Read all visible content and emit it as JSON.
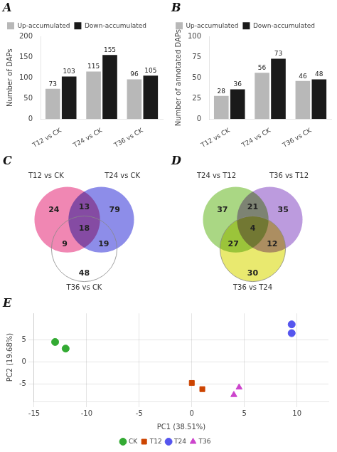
{
  "chart_data": [
    {
      "type": "bar",
      "title": "A",
      "categories": [
        "T12 vs CK",
        "T24 vs CK",
        "T36 vs CK"
      ],
      "series": [
        {
          "name": "Up-accumulated",
          "color": "#b8b8b8",
          "values": [
            73,
            115,
            96
          ]
        },
        {
          "name": "Down-accumulated",
          "color": "#1a1a1a",
          "values": [
            103,
            155,
            105
          ]
        }
      ],
      "ylabel": "Number of DAPs",
      "ylim": [
        0,
        200
      ],
      "yticks": [
        0,
        50,
        100,
        150,
        200
      ],
      "legend": "upper left",
      "data_labels": true,
      "grid": false
    },
    {
      "type": "bar",
      "title": "B",
      "categories": [
        "T12 vs CK",
        "T24 vs CK",
        "T36 vs CK"
      ],
      "series": [
        {
          "name": "Up-accumulated",
          "color": "#b8b8b8",
          "values": [
            28,
            56,
            46
          ]
        },
        {
          "name": "Down-accumulated",
          "color": "#1a1a1a",
          "values": [
            36,
            73,
            48
          ]
        }
      ],
      "ylabel": "Number of annotated DAPs",
      "ylim": [
        0,
        100
      ],
      "yticks": [
        0,
        25,
        50,
        75,
        100
      ],
      "legend": "upper left",
      "data_labels": true,
      "grid": false
    },
    {
      "type": "venn",
      "title": "C",
      "series": [
        {
          "name": "T12 vs CK",
          "color": "#e8468a"
        },
        {
          "name": "T24 vs CK",
          "color": "#5050dd"
        },
        {
          "name": "T36 vs CK",
          "color": "#ffffff"
        }
      ],
      "regions": [
        {
          "sets": [
            "T12 vs CK"
          ],
          "value": 24
        },
        {
          "sets": [
            "T24 vs CK"
          ],
          "value": 79
        },
        {
          "sets": [
            "T36 vs CK"
          ],
          "value": 48
        },
        {
          "sets": [
            "T12 vs CK",
            "T24 vs CK"
          ],
          "value": 13
        },
        {
          "sets": [
            "T12 vs CK",
            "T36 vs CK"
          ],
          "value": 9
        },
        {
          "sets": [
            "T24 vs CK",
            "T36 vs CK"
          ],
          "value": 19
        },
        {
          "sets": [
            "T12 vs CK",
            "T24 vs CK",
            "T36 vs CK"
          ],
          "value": 18
        }
      ],
      "data_labels": true
    },
    {
      "type": "venn",
      "title": "D",
      "series": [
        {
          "name": "T24 vs T12",
          "color": "#7dc242"
        },
        {
          "name": "T36 vs T12",
          "color": "#9966cc"
        },
        {
          "name": "T36 vs T24",
          "color": "#dddd22"
        }
      ],
      "regions": [
        {
          "sets": [
            "T24 vs T12"
          ],
          "value": 37
        },
        {
          "sets": [
            "T36 vs T12"
          ],
          "value": 35
        },
        {
          "sets": [
            "T36 vs T24"
          ],
          "value": 30
        },
        {
          "sets": [
            "T24 vs T12",
            "T36 vs T12"
          ],
          "value": 21
        },
        {
          "sets": [
            "T24 vs T12",
            "T36 vs T24"
          ],
          "value": 27
        },
        {
          "sets": [
            "T36 vs T12",
            "T36 vs T24"
          ],
          "value": 12
        },
        {
          "sets": [
            "T24 vs T12",
            "T36 vs T12",
            "T36 vs T24"
          ],
          "value": 4
        }
      ],
      "data_labels": true
    },
    {
      "type": "scatter",
      "title": "E",
      "xlabel": "PC1 (38.51%)",
      "ylabel": "PC2 (19.68%)",
      "xlim": [
        -15,
        13
      ],
      "ylim": [
        -9,
        11
      ],
      "xticks": [
        -15,
        -10,
        -5,
        0,
        5,
        10
      ],
      "yticks": [
        -5,
        0,
        5
      ],
      "series": [
        {
          "name": "CK",
          "color": "#33aa33",
          "marker": "circle",
          "x": [
            -13,
            -12
          ],
          "values": [
            4.5,
            3
          ]
        },
        {
          "name": "T12",
          "color": "#cc4400",
          "marker": "square",
          "x": [
            0,
            1
          ],
          "values": [
            -4.8,
            -6.2
          ]
        },
        {
          "name": "T24",
          "color": "#5555ee",
          "marker": "circle",
          "x": [
            9.5,
            9.5
          ],
          "values": [
            8.5,
            6.5
          ]
        },
        {
          "name": "T36",
          "color": "#cc44cc",
          "marker": "triangle",
          "x": [
            4.5,
            4
          ],
          "values": [
            -5.8,
            -7.5
          ]
        }
      ],
      "legend": "bottom",
      "grid": true
    }
  ]
}
